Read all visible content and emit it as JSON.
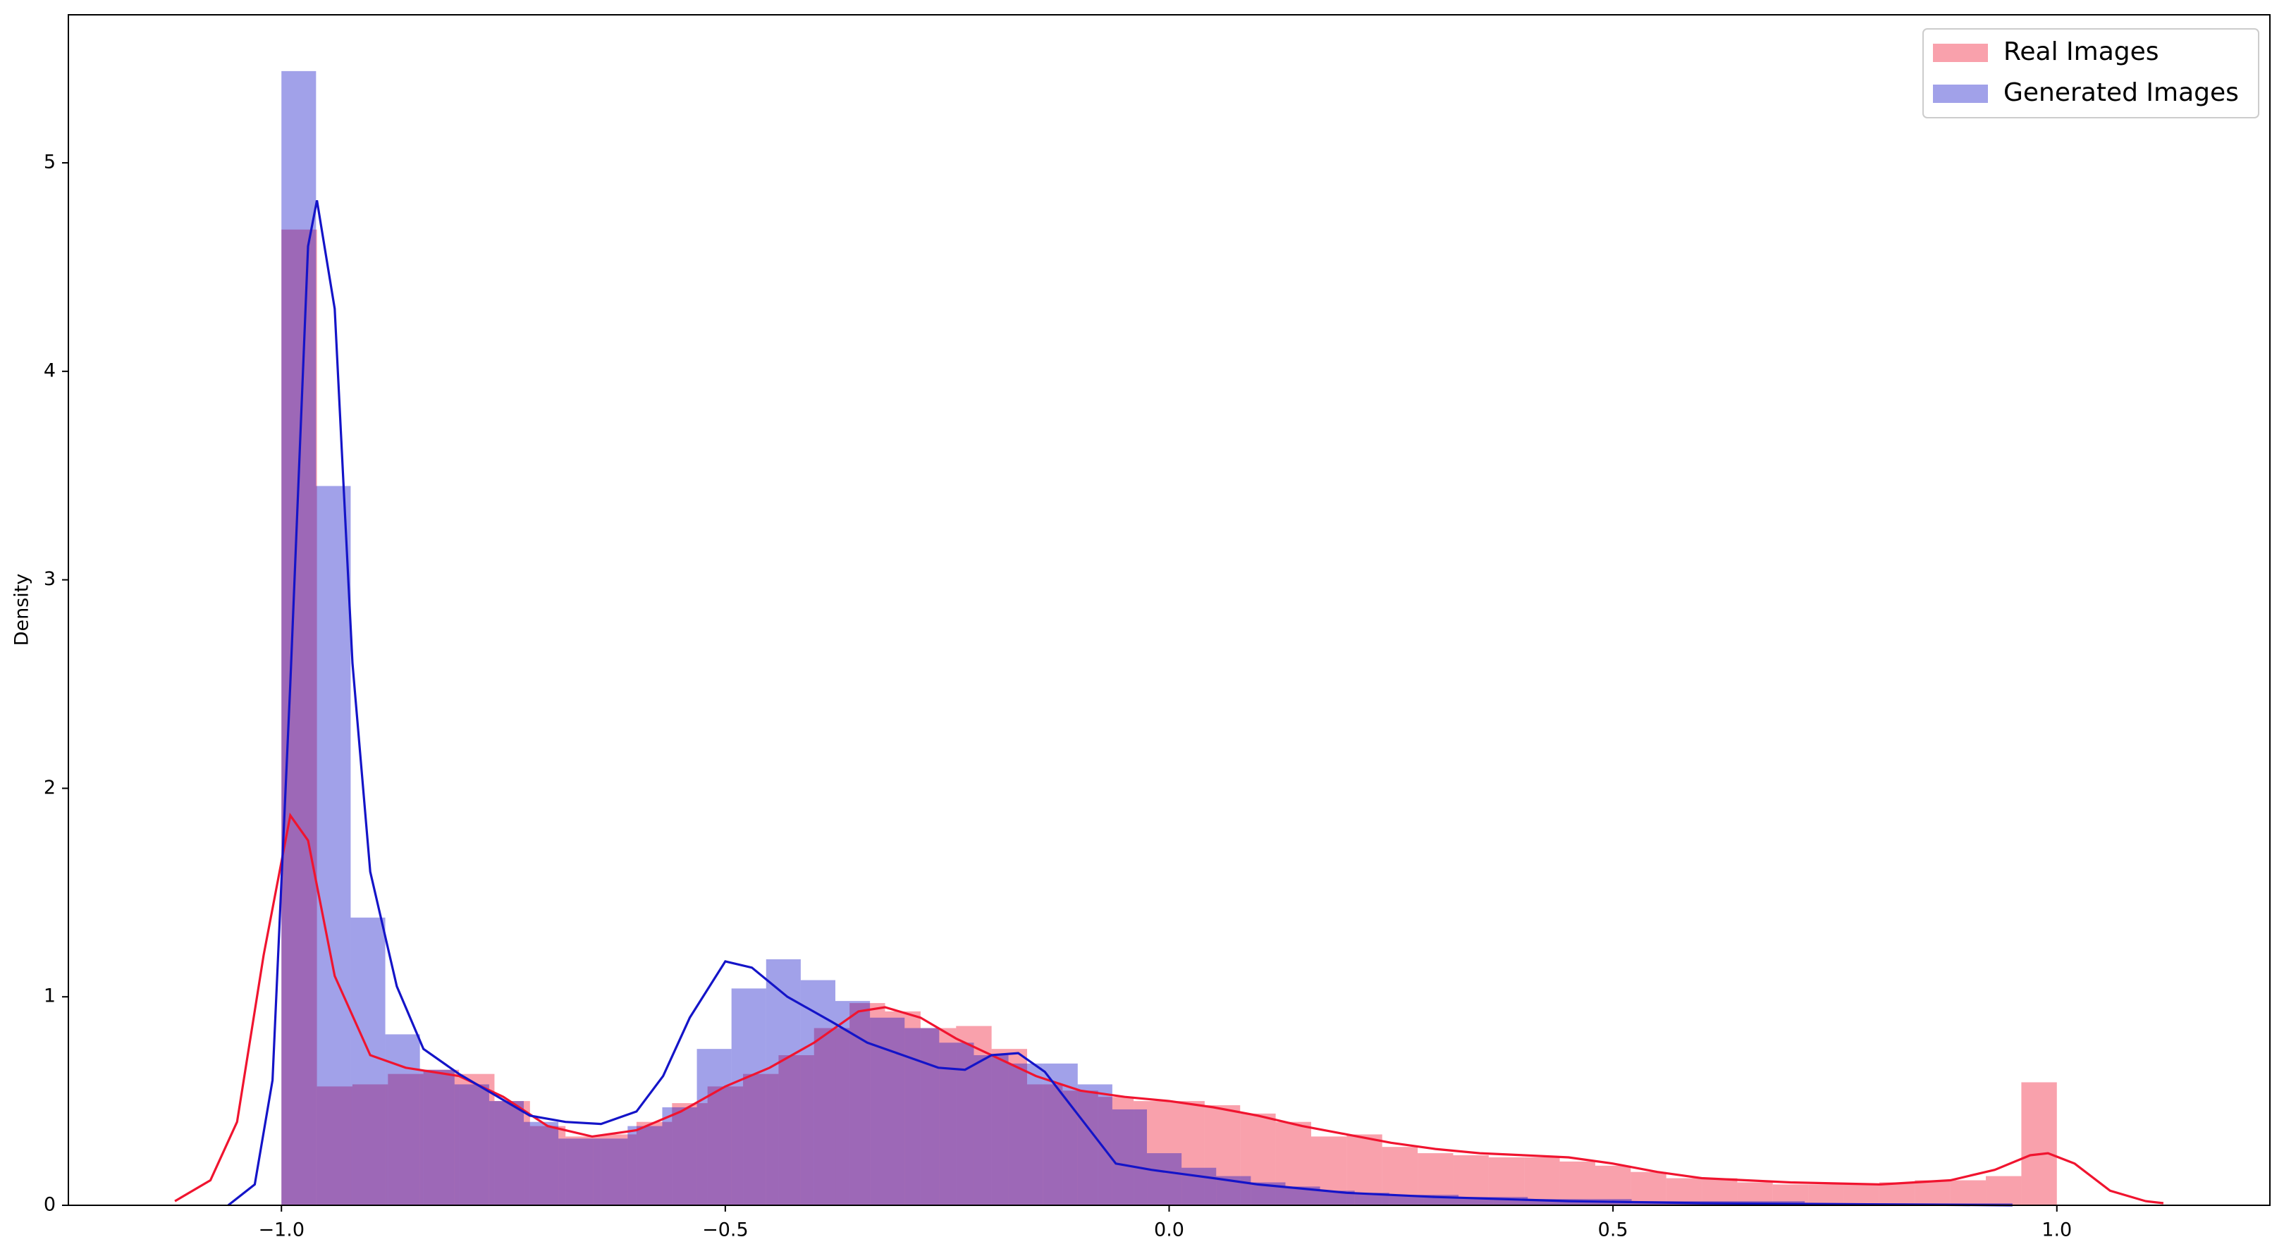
{
  "chart_data": {
    "type": "histogram",
    "ylabel": "Density",
    "xlim": [
      -1.24,
      1.24
    ],
    "ylim": [
      0,
      5.71
    ],
    "xticks": [
      {
        "value": -1.0,
        "label": "−1.0"
      },
      {
        "value": -0.5,
        "label": "−0.5"
      },
      {
        "value": 0.0,
        "label": "0.0"
      },
      {
        "value": 0.5,
        "label": "0.5"
      },
      {
        "value": 1.0,
        "label": "1.0"
      }
    ],
    "yticks": [
      0,
      1,
      2,
      3,
      4,
      5
    ],
    "grid": false,
    "legend": "upper right",
    "alpha": 0.4,
    "series": [
      {
        "name": "Real Images",
        "color": "#f0142f",
        "bins": [
          -1.0,
          -0.96,
          -0.92,
          -0.88,
          -0.84,
          -0.8,
          -0.76,
          -0.72,
          -0.68,
          -0.64,
          -0.6,
          -0.56,
          -0.52,
          -0.48,
          -0.44,
          -0.4,
          -0.36,
          -0.32,
          -0.28,
          -0.24,
          -0.2,
          -0.16,
          -0.12,
          -0.08,
          -0.04,
          0.0,
          0.04,
          0.08,
          0.12,
          0.16,
          0.2,
          0.24,
          0.28,
          0.32,
          0.36,
          0.4,
          0.44,
          0.48,
          0.52,
          0.56,
          0.6,
          0.64,
          0.68,
          0.72,
          0.76,
          0.8,
          0.84,
          0.88,
          0.92,
          0.96,
          1.0
        ],
        "values": [
          4.68,
          0.57,
          0.58,
          0.63,
          0.65,
          0.63,
          0.5,
          0.38,
          0.33,
          0.34,
          0.4,
          0.49,
          0.57,
          0.63,
          0.72,
          0.85,
          0.97,
          0.93,
          0.85,
          0.86,
          0.75,
          0.58,
          0.55,
          0.52,
          0.5,
          0.5,
          0.48,
          0.44,
          0.4,
          0.33,
          0.34,
          0.28,
          0.25,
          0.24,
          0.23,
          0.23,
          0.21,
          0.19,
          0.16,
          0.13,
          0.13,
          0.11,
          0.1,
          0.1,
          0.1,
          0.11,
          0.12,
          0.12,
          0.14,
          0.59
        ],
        "kde_x": [
          -1.12,
          -1.08,
          -1.05,
          -1.02,
          -0.99,
          -0.97,
          -0.94,
          -0.9,
          -0.86,
          -0.8,
          -0.75,
          -0.7,
          -0.65,
          -0.6,
          -0.55,
          -0.5,
          -0.45,
          -0.4,
          -0.35,
          -0.32,
          -0.28,
          -0.24,
          -0.2,
          -0.15,
          -0.1,
          -0.05,
          0.0,
          0.05,
          0.1,
          0.15,
          0.2,
          0.25,
          0.3,
          0.35,
          0.4,
          0.45,
          0.5,
          0.55,
          0.6,
          0.7,
          0.8,
          0.88,
          0.93,
          0.97,
          0.99,
          1.02,
          1.06,
          1.1,
          1.12
        ],
        "kde_y": [
          0.02,
          0.12,
          0.4,
          1.2,
          1.87,
          1.75,
          1.1,
          0.72,
          0.66,
          0.62,
          0.52,
          0.38,
          0.33,
          0.36,
          0.45,
          0.57,
          0.66,
          0.78,
          0.93,
          0.95,
          0.9,
          0.8,
          0.72,
          0.62,
          0.55,
          0.52,
          0.5,
          0.47,
          0.43,
          0.38,
          0.34,
          0.3,
          0.27,
          0.25,
          0.24,
          0.23,
          0.2,
          0.16,
          0.13,
          0.11,
          0.1,
          0.12,
          0.17,
          0.24,
          0.25,
          0.2,
          0.07,
          0.02,
          0.01
        ]
      },
      {
        "name": "Generated Images",
        "color": "#1414c8",
        "bins": [
          -1.0,
          -0.961,
          -0.922,
          -0.883,
          -0.844,
          -0.805,
          -0.766,
          -0.727,
          -0.688,
          -0.649,
          -0.61,
          -0.571,
          -0.532,
          -0.493,
          -0.454,
          -0.415,
          -0.376,
          -0.337,
          -0.298,
          -0.259,
          -0.22,
          -0.181,
          -0.142,
          -0.103,
          -0.064,
          -0.025,
          0.014,
          0.053,
          0.092,
          0.131,
          0.17,
          0.209,
          0.248,
          0.287,
          0.326,
          0.365,
          0.404,
          0.443,
          0.482,
          0.521,
          0.56,
          0.599,
          0.638,
          0.677,
          0.716,
          0.755,
          0.794,
          0.833,
          0.872,
          0.911,
          0.95
        ],
        "values": [
          5.44,
          3.45,
          1.38,
          0.82,
          0.65,
          0.58,
          0.5,
          0.4,
          0.32,
          0.32,
          0.38,
          0.47,
          0.75,
          1.04,
          1.18,
          1.08,
          0.98,
          0.9,
          0.85,
          0.78,
          0.72,
          0.68,
          0.68,
          0.58,
          0.46,
          0.25,
          0.18,
          0.14,
          0.11,
          0.09,
          0.07,
          0.06,
          0.05,
          0.05,
          0.04,
          0.04,
          0.03,
          0.03,
          0.03,
          0.02,
          0.02,
          0.02,
          0.02,
          0.02,
          0.01,
          0.01,
          0.01,
          0.01,
          0.01,
          0.01
        ],
        "kde_x": [
          -1.06,
          -1.03,
          -1.01,
          -0.99,
          -0.97,
          -0.96,
          -0.94,
          -0.92,
          -0.9,
          -0.87,
          -0.84,
          -0.8,
          -0.76,
          -0.72,
          -0.68,
          -0.64,
          -0.6,
          -0.57,
          -0.54,
          -0.5,
          -0.47,
          -0.43,
          -0.38,
          -0.34,
          -0.3,
          -0.26,
          -0.23,
          -0.2,
          -0.17,
          -0.14,
          -0.1,
          -0.06,
          -0.02,
          0.05,
          0.1,
          0.2,
          0.3,
          0.45,
          0.6,
          0.95
        ],
        "kde_y": [
          0,
          0.1,
          0.6,
          2.5,
          4.6,
          4.82,
          4.3,
          2.6,
          1.6,
          1.05,
          0.75,
          0.63,
          0.53,
          0.43,
          0.4,
          0.39,
          0.45,
          0.62,
          0.9,
          1.17,
          1.14,
          1.0,
          0.88,
          0.78,
          0.72,
          0.66,
          0.65,
          0.72,
          0.73,
          0.64,
          0.42,
          0.2,
          0.17,
          0.13,
          0.1,
          0.06,
          0.04,
          0.02,
          0.01,
          0
        ]
      }
    ]
  }
}
